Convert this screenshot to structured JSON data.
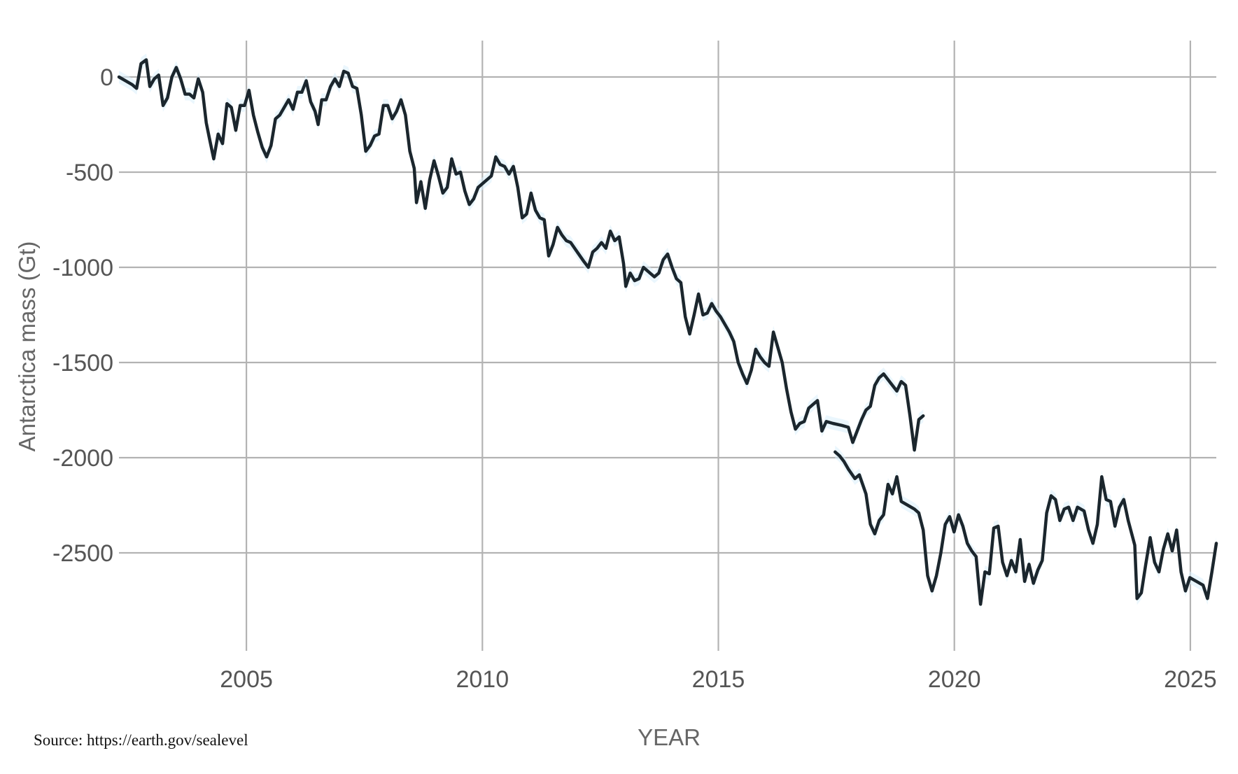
{
  "chart_data": {
    "type": "line",
    "title": "",
    "xlabel": "YEAR",
    "ylabel": "Antarctica mass (Gt)",
    "xlim": [
      2002.3,
      2025.55
    ],
    "ylim": [
      -3000,
      170
    ],
    "x_ticks": [
      2005,
      2010,
      2015,
      2020,
      2025
    ],
    "y_ticks": [
      0,
      -500,
      -1000,
      -1500,
      -2000,
      -2500
    ],
    "x_tick_labels": [
      "2005",
      "2010",
      "2015",
      "2020",
      "2025"
    ],
    "y_tick_labels": [
      "0",
      "-500",
      "-1000",
      "-1500",
      "-2000",
      "-2500"
    ],
    "grid": true,
    "source": "Source: https://earth.gov/sealevel",
    "colors": {
      "line": "#1b262d",
      "band": "#d9eefc",
      "grid": "#b3b3b3",
      "tick_text": "#555555"
    },
    "series": [
      {
        "segments": [
          [
            [
              2002.3,
              0
            ],
            [
              2002.45,
              -20
            ],
            [
              2002.6,
              -40
            ],
            [
              2002.7,
              -60
            ],
            [
              2002.8,
              70
            ],
            [
              2002.92,
              90
            ],
            [
              2003.0,
              -50
            ],
            [
              2003.1,
              -10
            ],
            [
              2003.2,
              10
            ],
            [
              2003.3,
              -150
            ],
            [
              2003.4,
              -110
            ],
            [
              2003.5,
              0
            ],
            [
              2003.6,
              50
            ],
            [
              2003.7,
              -10
            ],
            [
              2003.8,
              -90
            ],
            [
              2003.9,
              -90
            ],
            [
              2004.0,
              -110
            ],
            [
              2004.1,
              -10
            ],
            [
              2004.2,
              -80
            ],
            [
              2004.28,
              -240
            ],
            [
              2004.35,
              -320
            ],
            [
              2004.45,
              -430
            ],
            [
              2004.55,
              -300
            ],
            [
              2004.65,
              -350
            ],
            [
              2004.75,
              -140
            ],
            [
              2004.85,
              -160
            ],
            [
              2004.95,
              -280
            ],
            [
              2005.05,
              -150
            ],
            [
              2005.15,
              -150
            ],
            [
              2005.25,
              -70
            ],
            [
              2005.35,
              -200
            ],
            [
              2005.45,
              -290
            ],
            [
              2005.55,
              -370
            ],
            [
              2005.65,
              -420
            ],
            [
              2005.75,
              -360
            ],
            [
              2005.85,
              -220
            ],
            [
              2005.95,
              -200
            ],
            [
              2006.05,
              -160
            ],
            [
              2006.15,
              -120
            ],
            [
              2006.25,
              -170
            ],
            [
              2006.35,
              -80
            ],
            [
              2006.45,
              -80
            ],
            [
              2006.55,
              -20
            ],
            [
              2006.65,
              -130
            ],
            [
              2006.75,
              -180
            ],
            [
              2006.82,
              -250
            ],
            [
              2006.9,
              -120
            ],
            [
              2007.0,
              -120
            ],
            [
              2007.1,
              -50
            ],
            [
              2007.2,
              -10
            ],
            [
              2007.3,
              -50
            ],
            [
              2007.4,
              30
            ],
            [
              2007.5,
              20
            ],
            [
              2007.6,
              -50
            ],
            [
              2007.7,
              -60
            ],
            [
              2007.8,
              -200
            ],
            [
              2007.9,
              -390
            ],
            [
              2008.0,
              -360
            ],
            [
              2008.1,
              -310
            ],
            [
              2008.2,
              -300
            ],
            [
              2008.3,
              -150
            ],
            [
              2008.4,
              -150
            ],
            [
              2008.5,
              -220
            ],
            [
              2008.6,
              -180
            ],
            [
              2008.7,
              -120
            ],
            [
              2008.8,
              -200
            ],
            [
              2008.9,
              -390
            ],
            [
              2009.0,
              -480
            ],
            [
              2009.05,
              -660
            ],
            [
              2009.15,
              -550
            ],
            [
              2009.25,
              -690
            ],
            [
              2009.35,
              -540
            ],
            [
              2009.45,
              -440
            ],
            [
              2009.55,
              -520
            ],
            [
              2009.65,
              -610
            ],
            [
              2009.75,
              -580
            ],
            [
              2009.85,
              -430
            ],
            [
              2009.95,
              -510
            ],
            [
              2010.05,
              -500
            ],
            [
              2010.15,
              -600
            ],
            [
              2010.25,
              -670
            ],
            [
              2010.35,
              -640
            ],
            [
              2010.45,
              -580
            ],
            [
              2010.6,
              -550
            ],
            [
              2010.75,
              -520
            ],
            [
              2010.85,
              -420
            ],
            [
              2010.95,
              -460
            ],
            [
              2011.05,
              -470
            ],
            [
              2011.15,
              -510
            ],
            [
              2011.25,
              -470
            ],
            [
              2011.35,
              -580
            ],
            [
              2011.45,
              -740
            ],
            [
              2011.55,
              -720
            ],
            [
              2011.65,
              -610
            ],
            [
              2011.75,
              -700
            ],
            [
              2011.85,
              -740
            ],
            [
              2011.95,
              -750
            ],
            [
              2012.05,
              -940
            ],
            [
              2012.15,
              -880
            ],
            [
              2012.25,
              -790
            ],
            [
              2012.35,
              -830
            ],
            [
              2012.45,
              -860
            ],
            [
              2012.55,
              -870
            ],
            [
              2012.7,
              -920
            ],
            [
              2012.85,
              -970
            ],
            [
              2012.95,
              -1000
            ],
            [
              2013.05,
              -920
            ],
            [
              2013.15,
              -900
            ],
            [
              2013.25,
              -870
            ],
            [
              2013.35,
              -900
            ],
            [
              2013.45,
              -810
            ],
            [
              2013.55,
              -860
            ],
            [
              2013.65,
              -840
            ],
            [
              2013.75,
              -980
            ],
            [
              2013.8,
              -1100
            ],
            [
              2013.9,
              -1030
            ],
            [
              2014.0,
              -1070
            ],
            [
              2014.1,
              -1060
            ],
            [
              2014.2,
              -1000
            ],
            [
              2014.35,
              -1030
            ],
            [
              2014.45,
              -1050
            ],
            [
              2014.55,
              -1030
            ],
            [
              2014.65,
              -960
            ],
            [
              2014.75,
              -930
            ],
            [
              2014.85,
              -1000
            ],
            [
              2014.95,
              -1060
            ],
            [
              2015.05,
              -1080
            ],
            [
              2015.15,
              -1260
            ],
            [
              2015.25,
              -1350
            ],
            [
              2015.35,
              -1250
            ],
            [
              2015.45,
              -1140
            ],
            [
              2015.55,
              -1250
            ],
            [
              2015.65,
              -1240
            ],
            [
              2015.75,
              -1190
            ],
            [
              2015.85,
              -1230
            ],
            [
              2015.95,
              -1260
            ],
            [
              2016.05,
              -1300
            ],
            [
              2016.15,
              -1340
            ],
            [
              2016.25,
              -1390
            ],
            [
              2016.35,
              -1500
            ],
            [
              2016.45,
              -1560
            ],
            [
              2016.55,
              -1610
            ],
            [
              2016.65,
              -1540
            ],
            [
              2016.75,
              -1430
            ],
            [
              2016.85,
              -1470
            ],
            [
              2016.95,
              -1500
            ],
            [
              2017.05,
              -1520
            ],
            [
              2017.15,
              -1340
            ],
            [
              2017.25,
              -1420
            ],
            [
              2017.35,
              -1500
            ],
            [
              2017.45,
              -1640
            ],
            [
              2017.55,
              -1760
            ],
            [
              2017.65,
              -1850
            ],
            [
              2017.75,
              -1820
            ],
            [
              2017.85,
              -1810
            ],
            [
              2017.95,
              -1740
            ],
            [
              2018.05,
              -1720
            ],
            [
              2018.15,
              -1700
            ],
            [
              2018.25,
              -1860
            ],
            [
              2018.35,
              -1810
            ],
            [
              2018.5,
              -1820
            ],
            [
              2018.7,
              -1830
            ],
            [
              2018.85,
              -1840
            ],
            [
              2018.95,
              -1920
            ],
            [
              2019.05,
              -1860
            ],
            [
              2019.15,
              -1800
            ],
            [
              2019.25,
              -1750
            ],
            [
              2019.35,
              -1730
            ],
            [
              2019.45,
              -1620
            ],
            [
              2019.55,
              -1580
            ],
            [
              2019.65,
              -1560
            ],
            [
              2019.75,
              -1590
            ],
            [
              2019.85,
              -1620
            ],
            [
              2019.95,
              -1650
            ],
            [
              2020.05,
              -1600
            ],
            [
              2020.15,
              -1620
            ],
            [
              2020.25,
              -1780
            ],
            [
              2020.35,
              -1960
            ],
            [
              2020.45,
              -1800
            ],
            [
              2020.55,
              -1780
            ]
          ],
          [
            [
              2018.55,
              -1970
            ],
            [
              2018.65,
              -1990
            ],
            [
              2018.75,
              -2020
            ],
            [
              2018.85,
              -2060
            ],
            [
              2019.0,
              -2110
            ],
            [
              2019.1,
              -2090
            ],
            [
              2019.25,
              -2190
            ],
            [
              2019.35,
              -2350
            ],
            [
              2019.45,
              -2400
            ],
            [
              2019.55,
              -2330
            ],
            [
              2019.65,
              -2300
            ],
            [
              2019.75,
              -2140
            ],
            [
              2019.85,
              -2190
            ],
            [
              2019.95,
              -2100
            ],
            [
              2020.05,
              -2230
            ],
            [
              2020.2,
              -2250
            ],
            [
              2020.35,
              -2270
            ],
            [
              2020.45,
              -2290
            ],
            [
              2020.55,
              -2380
            ],
            [
              2020.65,
              -2620
            ],
            [
              2020.75,
              -2700
            ],
            [
              2020.85,
              -2620
            ],
            [
              2020.95,
              -2500
            ],
            [
              2021.05,
              -2350
            ],
            [
              2021.15,
              -2310
            ],
            [
              2021.25,
              -2390
            ],
            [
              2021.35,
              -2300
            ],
            [
              2021.45,
              -2360
            ],
            [
              2021.55,
              -2450
            ],
            [
              2021.65,
              -2490
            ],
            [
              2021.75,
              -2520
            ],
            [
              2021.85,
              -2770
            ],
            [
              2021.95,
              -2600
            ],
            [
              2022.05,
              -2610
            ],
            [
              2022.15,
              -2370
            ],
            [
              2022.25,
              -2360
            ],
            [
              2022.35,
              -2550
            ],
            [
              2022.45,
              -2620
            ],
            [
              2022.55,
              -2540
            ],
            [
              2022.65,
              -2600
            ],
            [
              2022.75,
              -2430
            ],
            [
              2022.85,
              -2650
            ],
            [
              2022.95,
              -2560
            ],
            [
              2023.05,
              -2660
            ],
            [
              2023.15,
              -2590
            ],
            [
              2023.25,
              -2540
            ],
            [
              2023.35,
              -2290
            ],
            [
              2023.45,
              -2200
            ],
            [
              2023.55,
              -2220
            ],
            [
              2023.65,
              -2330
            ],
            [
              2023.75,
              -2270
            ],
            [
              2023.85,
              -2260
            ],
            [
              2023.95,
              -2330
            ],
            [
              2024.05,
              -2260
            ],
            [
              2024.2,
              -2280
            ],
            [
              2024.3,
              -2380
            ],
            [
              2024.4,
              -2450
            ],
            [
              2024.5,
              -2350
            ],
            [
              2024.6,
              -2100
            ],
            [
              2024.7,
              -2220
            ],
            [
              2024.8,
              -2230
            ],
            [
              2024.9,
              -2360
            ],
            [
              2025.0,
              -2260
            ],
            [
              2025.1,
              -2220
            ],
            [
              2025.2,
              -2330
            ],
            [
              2025.35,
              -2460
            ],
            [
              2025.4,
              -2740
            ],
            [
              2025.5,
              -2710
            ],
            [
              2025.6,
              -2560
            ],
            [
              2025.7,
              -2420
            ],
            [
              2025.8,
              -2550
            ],
            [
              2025.9,
              -2600
            ],
            [
              2026.0,
              -2480
            ],
            [
              2026.1,
              -2400
            ],
            [
              2026.2,
              -2490
            ],
            [
              2026.3,
              -2380
            ],
            [
              2026.4,
              -2600
            ],
            [
              2026.5,
              -2700
            ],
            [
              2026.6,
              -2630
            ],
            [
              2026.75,
              -2650
            ],
            [
              2026.9,
              -2670
            ],
            [
              2027.0,
              -2740
            ],
            [
              2027.1,
              -2600
            ],
            [
              2027.2,
              -2450
            ]
          ]
        ]
      }
    ]
  }
}
